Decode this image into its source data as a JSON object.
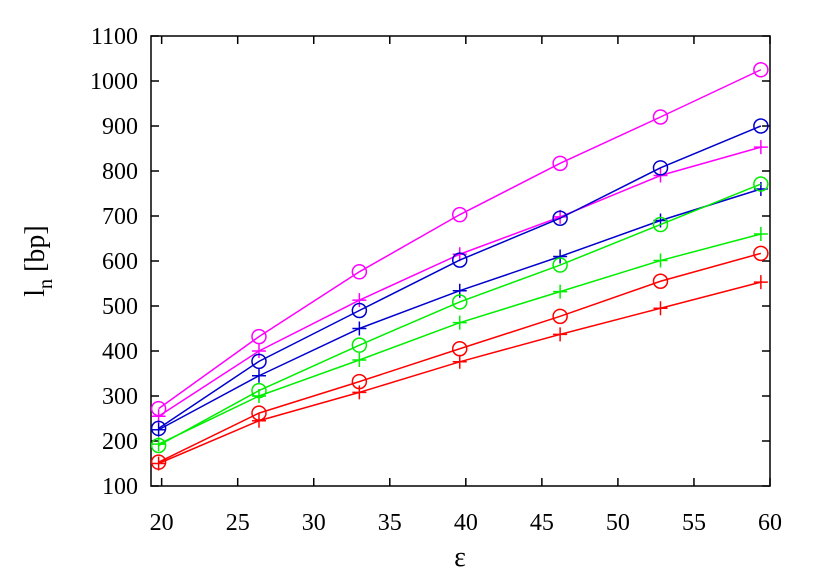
{
  "chart_data": {
    "type": "line",
    "title": "",
    "xlabel": "ε",
    "ylabel": "l",
    "ylabel_subscript": "n",
    "ylabel_unit": " [bp]",
    "xlim": [
      19.3,
      60
    ],
    "ylim": [
      100,
      1100
    ],
    "xticks": [
      20,
      25,
      30,
      35,
      40,
      45,
      50,
      55,
      60
    ],
    "yticks": [
      100,
      200,
      300,
      400,
      500,
      600,
      700,
      800,
      900,
      1000,
      1100
    ],
    "grid": false,
    "legend": "none",
    "x": [
      19.8,
      26.4,
      33.0,
      39.6,
      46.2,
      52.8,
      59.4
    ],
    "series": [
      {
        "color": "#ff00ff",
        "marker": "circle",
        "values": [
          272,
          432,
          576,
          703,
          817,
          920,
          1025
        ]
      },
      {
        "color": "#ff00ff",
        "marker": "plus",
        "values": [
          255,
          400,
          513,
          615,
          698,
          790,
          853
        ]
      },
      {
        "color": "#0000cc",
        "marker": "circle",
        "values": [
          228,
          377,
          490,
          602,
          695,
          807,
          900
        ]
      },
      {
        "color": "#0000cc",
        "marker": "plus",
        "values": [
          225,
          345,
          450,
          534,
          610,
          690,
          760
        ]
      },
      {
        "color": "#00ee00",
        "marker": "circle",
        "values": [
          190,
          312,
          413,
          509,
          591,
          681,
          771
        ]
      },
      {
        "color": "#00ee00",
        "marker": "plus",
        "values": [
          193,
          300,
          380,
          463,
          532,
          601,
          660
        ]
      },
      {
        "color": "#ff0000",
        "marker": "circle",
        "values": [
          153,
          262,
          332,
          405,
          477,
          555,
          617
        ]
      },
      {
        "color": "#ff0000",
        "marker": "plus",
        "values": [
          150,
          245,
          308,
          376,
          437,
          495,
          553
        ]
      }
    ]
  }
}
